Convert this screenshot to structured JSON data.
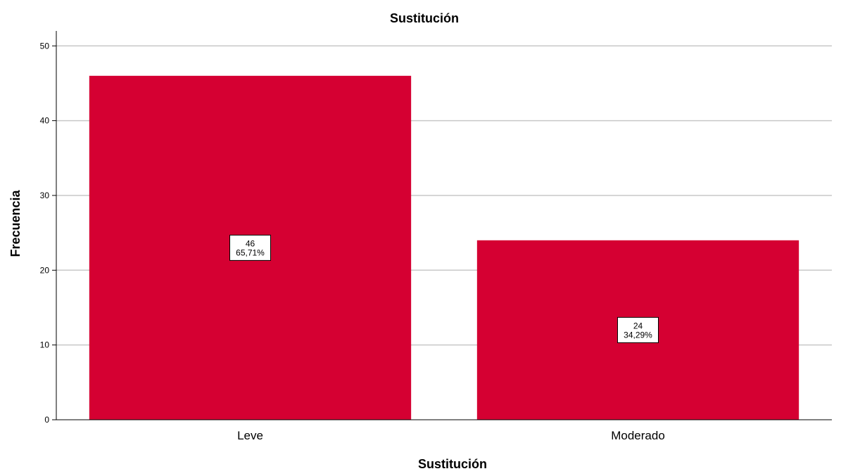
{
  "chart_data": {
    "type": "bar",
    "title": "Sustitución",
    "xlabel": "Sustitución",
    "ylabel": "Frecuencia",
    "categories": [
      "Leve",
      "Moderado"
    ],
    "values": [
      46,
      24
    ],
    "data_labels": [
      {
        "count": "46",
        "percent": "65,71%"
      },
      {
        "count": "24",
        "percent": "34,29%"
      }
    ],
    "ylim": [
      0,
      52
    ],
    "yticks": [
      0,
      10,
      20,
      30,
      40,
      50
    ],
    "grid": true,
    "legend": "none",
    "colors": {
      "bar": "#d50032",
      "grid": "#c8c8c8",
      "axis": "#000000",
      "label_box": "#ffffff"
    }
  }
}
